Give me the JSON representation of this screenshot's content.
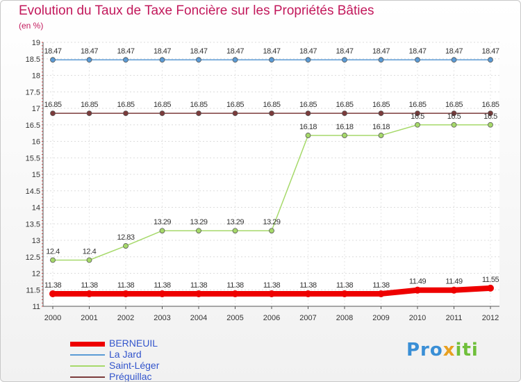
{
  "title": "Evolution du Taux de Taxe Foncière sur les Propriétés Bâties",
  "unit_label": "(en %)",
  "logo": {
    "part1": "Pro",
    "part2": "x",
    "part3": "iti"
  },
  "chart_data": {
    "type": "line",
    "title": "Evolution du Taux de Taxe Foncière sur les Propriétés Bâties",
    "ylabel": "(en %)",
    "xlabel": "",
    "ylim": [
      11,
      19
    ],
    "yticks": [
      "11",
      "11.5",
      "12",
      "12.5",
      "13",
      "13.5",
      "14",
      "14.5",
      "15",
      "15.5",
      "16",
      "16.5",
      "17",
      "17.5",
      "18",
      "18.5",
      "19"
    ],
    "x": [
      "2000",
      "2001",
      "2002",
      "2003",
      "2004",
      "2005",
      "2006",
      "2007",
      "2008",
      "2009",
      "2010",
      "2011",
      "2012"
    ],
    "series": [
      {
        "name": "BERNEUIL",
        "color": "#ee0000",
        "values": [
          11.38,
          11.38,
          11.38,
          11.38,
          11.38,
          11.38,
          11.38,
          11.38,
          11.38,
          11.38,
          11.49,
          11.49,
          11.55
        ],
        "labels": [
          "11.38",
          "11.38",
          "11.38",
          "11.38",
          "11.38",
          "11.38",
          "11.38",
          "11.38",
          "11.38",
          "11.38",
          "11.49",
          "11.49",
          "11.55"
        ]
      },
      {
        "name": "La Jard",
        "color": "#5b9bd5",
        "values": [
          18.47,
          18.47,
          18.47,
          18.47,
          18.47,
          18.47,
          18.47,
          18.47,
          18.47,
          18.47,
          18.47,
          18.47,
          18.47
        ],
        "labels": [
          "18.47",
          "18.47",
          "18.47",
          "18.47",
          "18.47",
          "18.47",
          "18.47",
          "18.47",
          "18.47",
          "18.47",
          "18.47",
          "18.47",
          "18.47"
        ]
      },
      {
        "name": "Saint-Léger",
        "color": "#a6d96a",
        "values": [
          12.4,
          12.4,
          12.83,
          13.29,
          13.29,
          13.29,
          13.29,
          16.18,
          16.18,
          16.18,
          16.5,
          16.5,
          16.5
        ],
        "labels": [
          "12.4",
          "12.4",
          "12.83",
          "13.29",
          "13.29",
          "13.29",
          "13.29",
          "16.18",
          "16.18",
          "16.18",
          "16.5",
          "16.5",
          "16.5"
        ]
      },
      {
        "name": "Préguillac",
        "color": "#7b3b3b",
        "values": [
          16.85,
          16.85,
          16.85,
          16.85,
          16.85,
          16.85,
          16.85,
          16.85,
          16.85,
          16.85,
          16.85,
          16.85,
          16.85
        ],
        "labels": [
          "16.85",
          "16.85",
          "16.85",
          "16.85",
          "16.85",
          "16.85",
          "16.85",
          "16.85",
          "16.85",
          "16.85",
          "16.85",
          "16.85",
          "16.85"
        ]
      }
    ],
    "legend": [
      "BERNEUIL",
      "La Jard",
      "Saint-Léger",
      "Préguillac"
    ],
    "legend_position": "bottom-left"
  }
}
